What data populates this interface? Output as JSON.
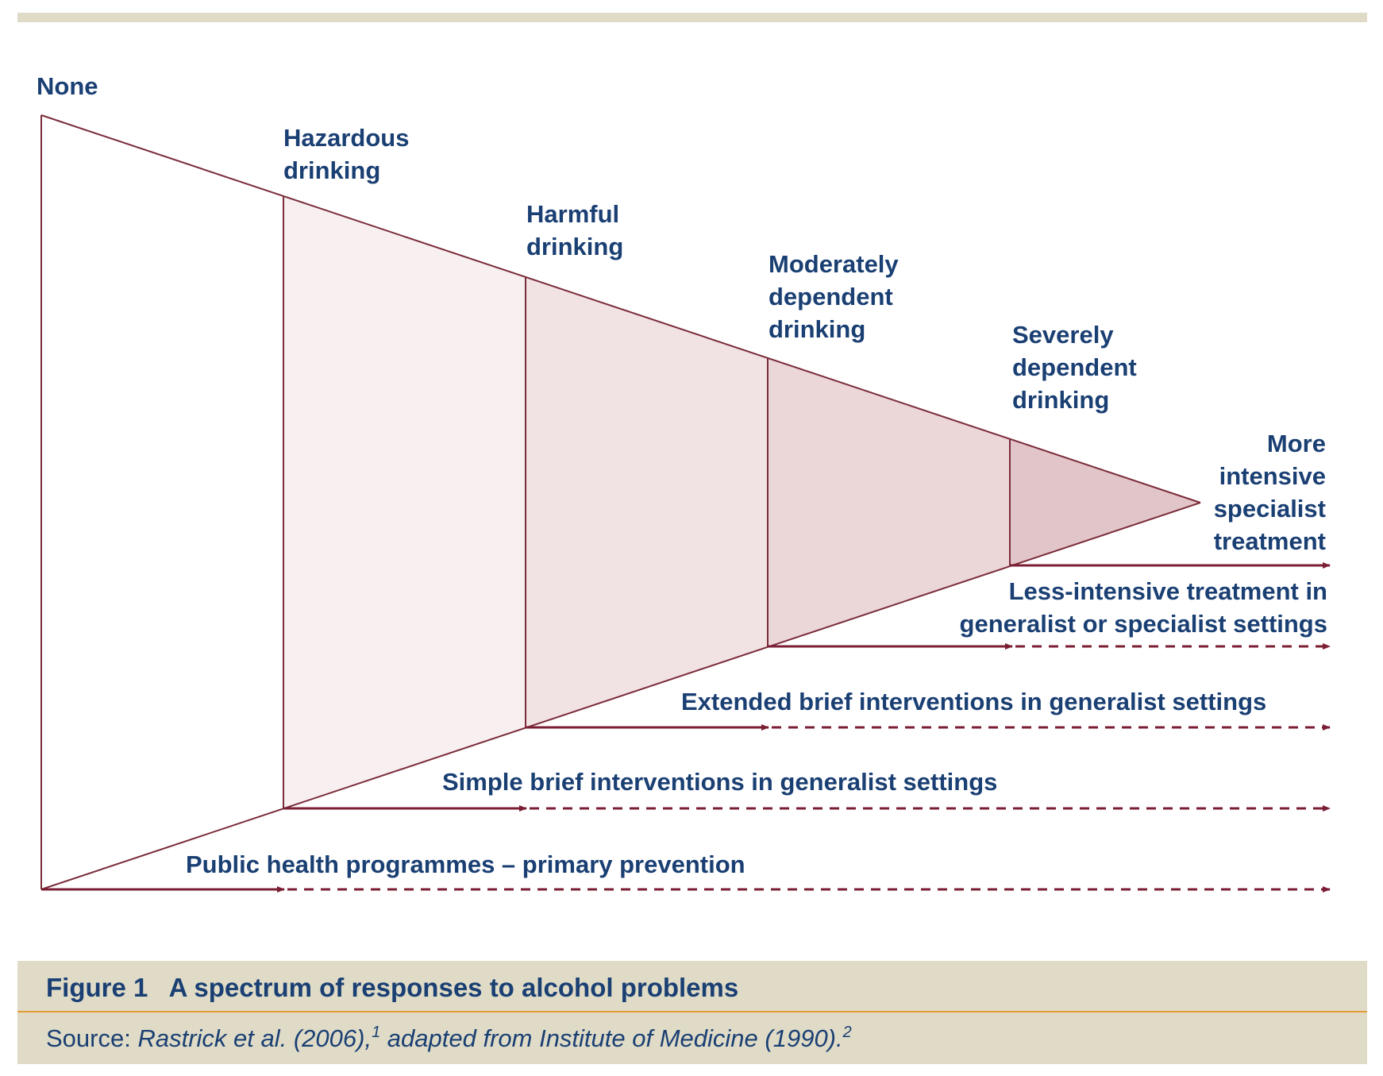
{
  "stages": [
    {
      "key": "none",
      "label": "None"
    },
    {
      "key": "hazardous",
      "label": "Hazardous\ndrinking"
    },
    {
      "key": "harmful",
      "label": "Harmful\ndrinking"
    },
    {
      "key": "moderate",
      "label": "Moderately\ndependent\ndrinking"
    },
    {
      "key": "severe",
      "label": "Severely\ndependent\ndrinking"
    }
  ],
  "responses": [
    {
      "key": "specialist",
      "label": "More\nintensive\nspecialist\ntreatment"
    },
    {
      "key": "less_intensive",
      "label": "Less-intensive treatment in\ngeneralist or specialist settings"
    },
    {
      "key": "extended_brief",
      "label": "Extended brief interventions in generalist settings"
    },
    {
      "key": "simple_brief",
      "label": "Simple brief interventions in generalist settings"
    },
    {
      "key": "public_health",
      "label": "Public health programmes – primary prevention"
    }
  ],
  "colors": {
    "line": "#7b2c3a",
    "arrow": "#7b1d33",
    "text": "#1a3f73",
    "band": "#dfdbc7",
    "rule": "#e39d36",
    "fills": [
      "#f7eff0",
      "#f1e2e3",
      "#ebd6d8",
      "#e2c5c8"
    ]
  },
  "caption": {
    "figure": "Figure 1",
    "title": "A spectrum of responses to alcohol problems",
    "source_prefix": "Source: ",
    "source_ref1": "Rastrick et al. (2006),",
    "source_sup1": "1",
    "source_mid": " adapted from Institute of Medicine (1990).",
    "source_sup2": "2"
  }
}
